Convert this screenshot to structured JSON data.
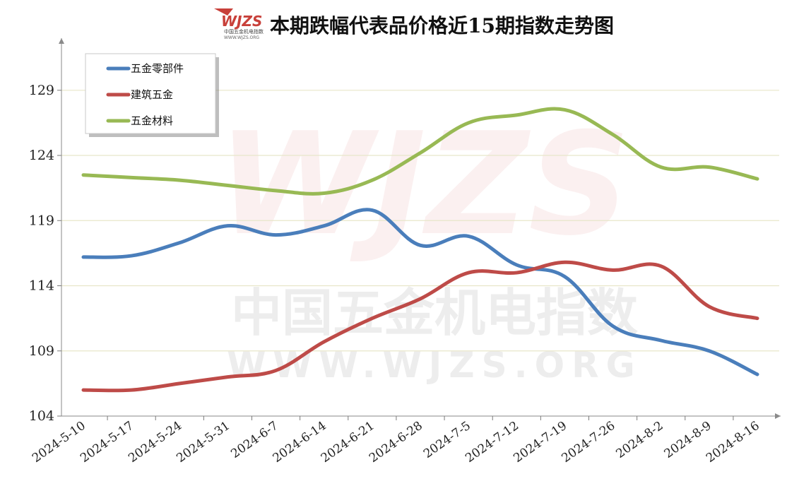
{
  "logo": {
    "text": "WJZS",
    "sub": "中国五金机电指数",
    "url": "WWW.WJZS.ORG"
  },
  "watermark": {
    "text": "WJZS",
    "cn": "中国五金机电指数",
    "url": "WWW.WJZS.ORG"
  },
  "colors": {
    "五金零部件": "#4a7ebb",
    "建筑五金": "#be4b48",
    "五金材料": "#98b954"
  },
  "chart_data": {
    "type": "line",
    "title": "本期跌幅代表品价格近15期指数走势图",
    "categories": [
      "2024-5-10",
      "2024-5-17",
      "2024-5-24",
      "2024-5-31",
      "2024-6-7",
      "2024-6-14",
      "2024-6-21",
      "2024-6-28",
      "2024-7-5",
      "2024-7-12",
      "2024-7-19",
      "2024-7-26",
      "2024-8-2",
      "2024-8-9",
      "2024-8-16"
    ],
    "y_ticks": [
      104,
      109,
      114,
      119,
      124,
      129
    ],
    "ylim": [
      104,
      133
    ],
    "grid": true,
    "legend_position": "top-left",
    "series": [
      {
        "name": "五金零部件",
        "values": [
          116.2,
          116.3,
          117.3,
          118.6,
          117.9,
          118.6,
          119.8,
          117.1,
          117.8,
          115.6,
          114.7,
          110.9,
          109.8,
          109.0,
          107.2
        ]
      },
      {
        "name": "建筑五金",
        "values": [
          106.0,
          106.0,
          106.5,
          107.0,
          107.5,
          109.7,
          111.5,
          113.0,
          115.0,
          115.0,
          115.8,
          115.2,
          115.5,
          112.4,
          111.5
        ]
      },
      {
        "name": "五金材料",
        "values": [
          122.5,
          122.3,
          122.1,
          121.7,
          121.3,
          121.1,
          122.1,
          124.2,
          126.5,
          127.1,
          127.5,
          125.6,
          123.1,
          123.1,
          122.2
        ]
      }
    ]
  }
}
